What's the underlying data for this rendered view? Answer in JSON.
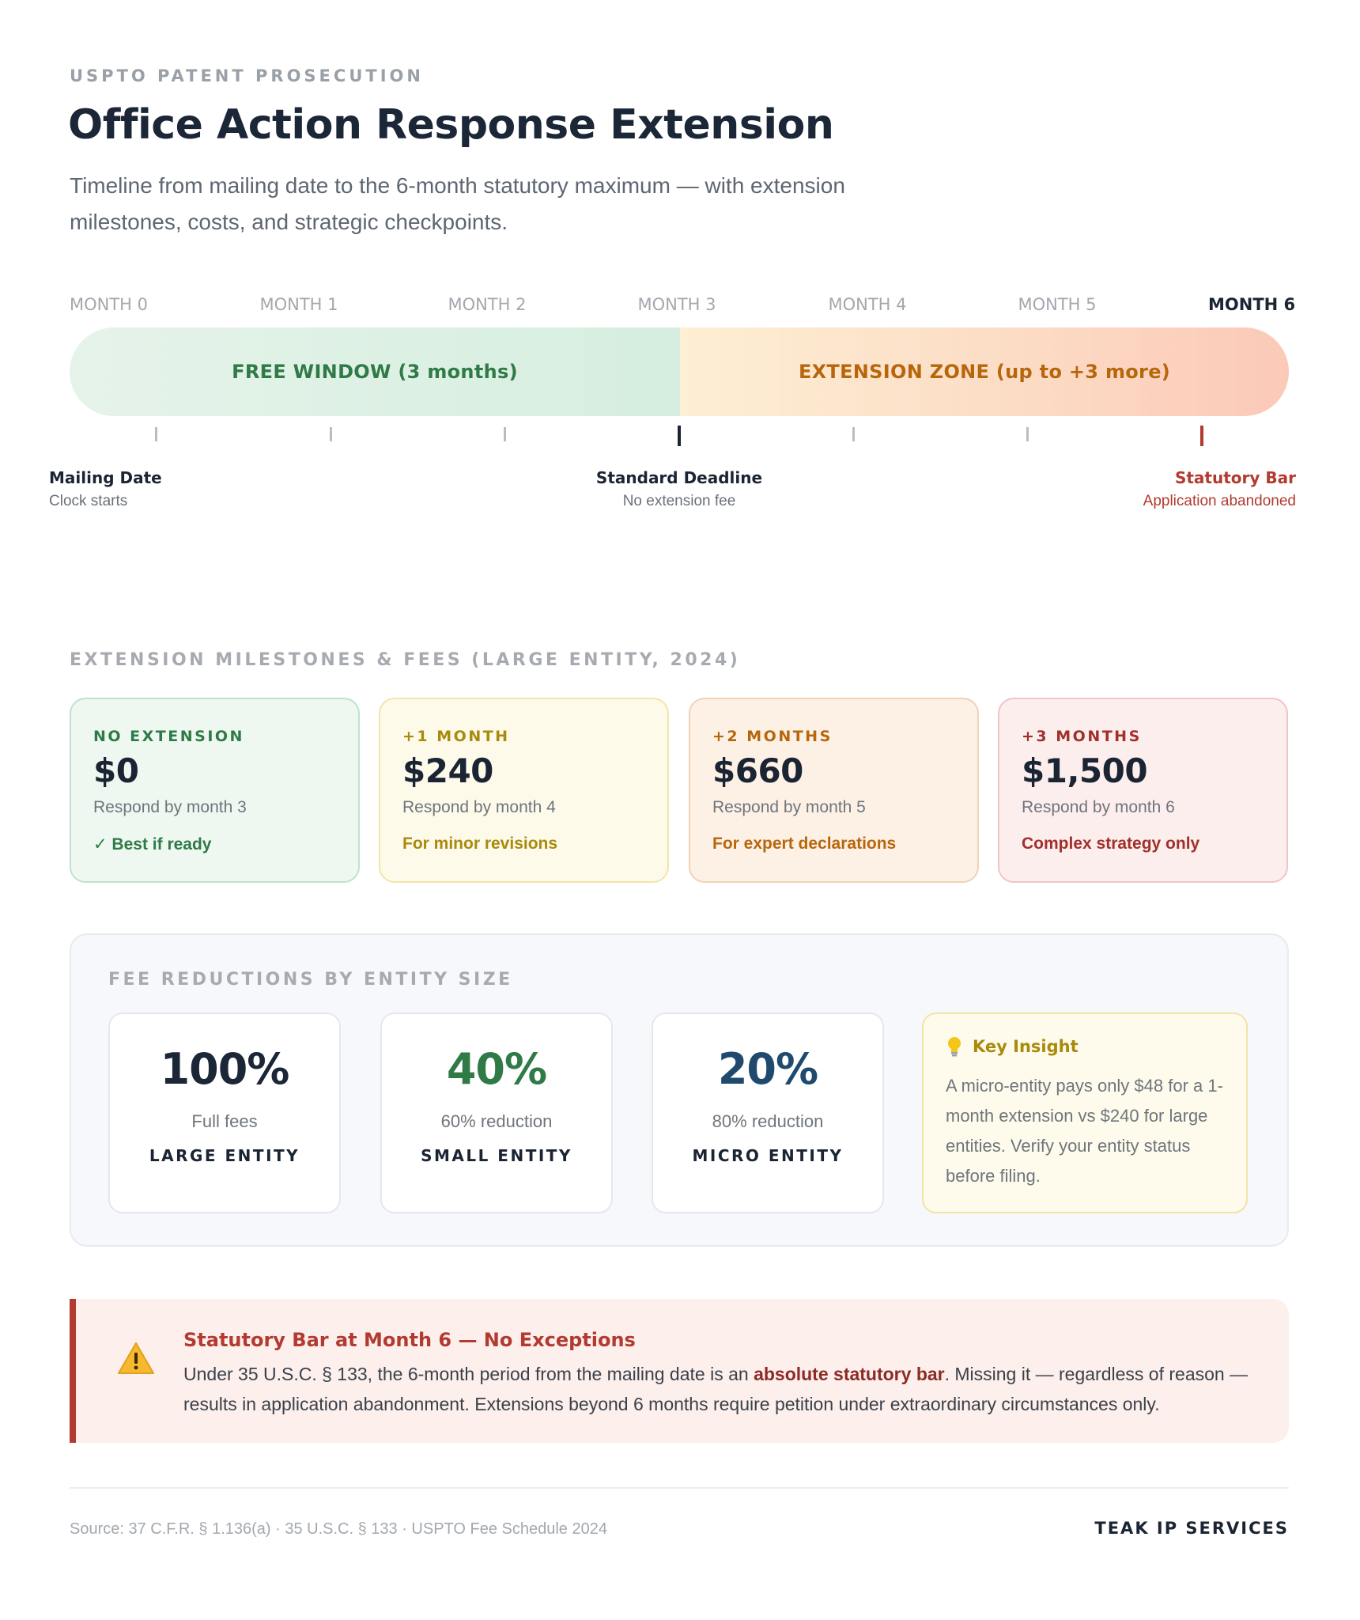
{
  "header": {
    "eyebrow": "USPTO PATENT PROSECUTION",
    "title": "Office Action Response Extension",
    "subtitle": "Timeline from mailing date to the 6-month statutory maximum — with extension milestones, costs, and strategic checkpoints."
  },
  "timeline": {
    "months": [
      "MONTH 0",
      "MONTH 1",
      "MONTH 2",
      "MONTH 3",
      "MONTH 4",
      "MONTH 5",
      "MONTH 6"
    ],
    "free_window": "FREE WINDOW (3 months)",
    "extension_zone": "EXTENSION ZONE (up to +3 more)",
    "markers": [
      {
        "title": "Mailing Date",
        "sub": "Clock starts"
      },
      {
        "title": "Standard Deadline",
        "sub": "No extension fee"
      },
      {
        "title": "Statutory Bar",
        "sub": "Application abandoned"
      }
    ]
  },
  "milestones": {
    "section_label": "EXTENSION MILESTONES & FEES (LARGE ENTITY, 2024)",
    "cards": [
      {
        "head": "NO EXTENSION",
        "price": "$0",
        "sub": "Respond by month 3",
        "note": "✓ Best if ready"
      },
      {
        "head": "+1 MONTH",
        "price": "$240",
        "sub": "Respond by month 4",
        "note": "For minor revisions"
      },
      {
        "head": "+2 MONTHS",
        "price": "$660",
        "sub": "Respond by month 5",
        "note": "For expert declarations"
      },
      {
        "head": "+3 MONTHS",
        "price": "$1,500",
        "sub": "Respond by month 6",
        "note": "Complex strategy only"
      }
    ]
  },
  "fees": {
    "section_label": "FEE REDUCTIONS BY ENTITY SIZE",
    "entities": [
      {
        "pct": "100%",
        "desc": "Full fees",
        "entity": "LARGE ENTITY",
        "color": "#1b2637"
      },
      {
        "pct": "40%",
        "desc": "60% reduction",
        "entity": "SMALL ENTITY",
        "color": "#2f7a46"
      },
      {
        "pct": "20%",
        "desc": "80% reduction",
        "entity": "MICRO ENTITY",
        "color": "#1f4a6e"
      }
    ],
    "insight": {
      "icon": "lightbulb-icon",
      "title": "Key Insight",
      "body": "A micro-entity pays only $48 for a 1-month extension vs $240 for large entities. Verify your entity status before filing."
    }
  },
  "warning": {
    "icon": "warning-icon",
    "title": "Statutory Bar at Month 6 — No Exceptions",
    "body_pre": "Under 35 U.S.C. § 133, the 6-month period from the mailing date is an ",
    "body_bold": "absolute statutory bar",
    "body_post": ". Missing it — regardless of reason — results in application abandonment. Extensions beyond 6 months require petition under extraordinary circumstances only."
  },
  "footer": {
    "source": "Source: 37 C.F.R. § 1.136(a) · 35 U.S.C. § 133 · USPTO Fee Schedule 2024",
    "brand": "TEAK IP SERVICES"
  },
  "colors": {
    "accent_green": "#2f7a46",
    "accent_orange": "#b8660c",
    "accent_red": "#b23a30",
    "text_dark": "#1b2433"
  }
}
